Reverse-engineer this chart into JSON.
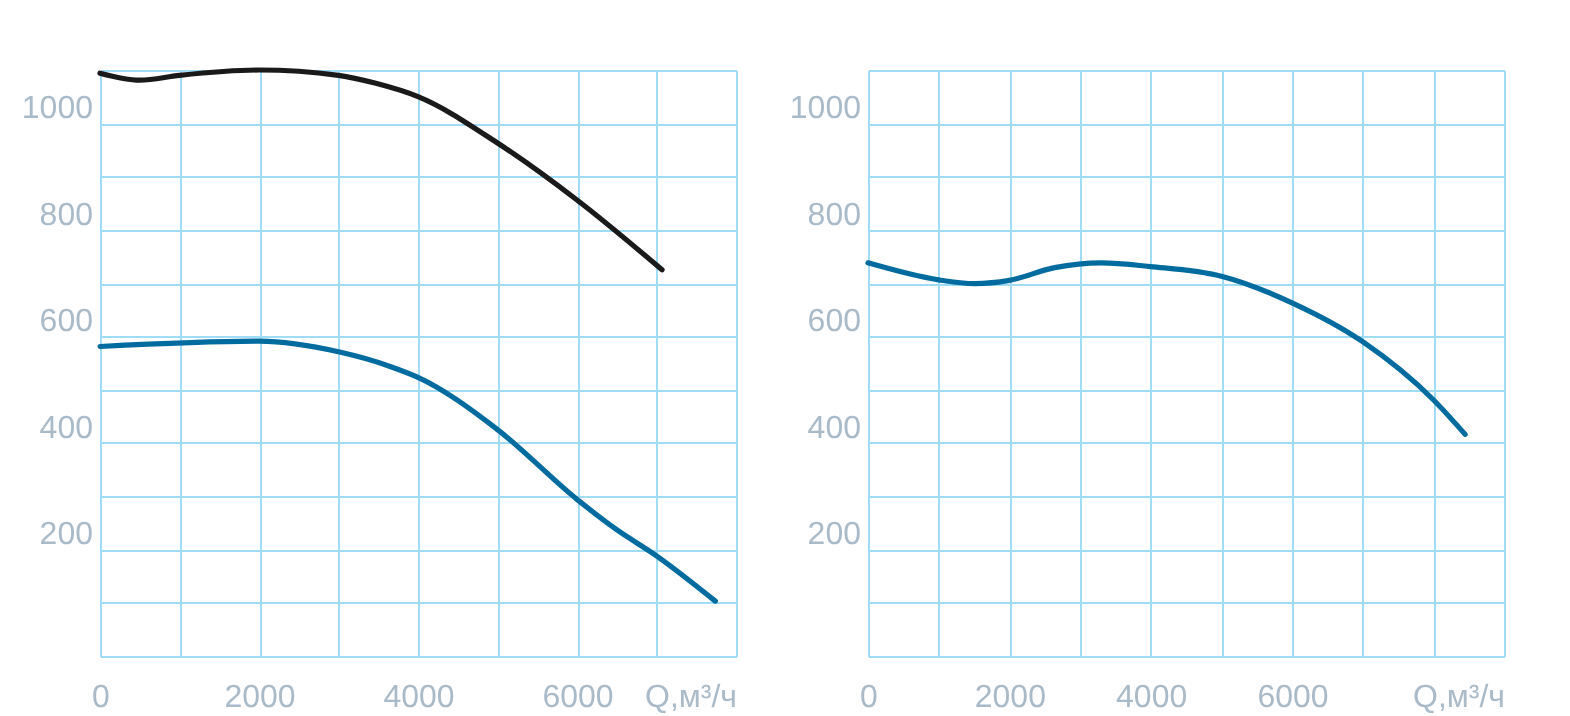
{
  "chart_data": [
    {
      "type": "line",
      "xlim": [
        0,
        8000
      ],
      "ylim": [
        0,
        1100
      ],
      "xlabel": "Q,м³/ч",
      "xticks": [
        0,
        {
          "value": 1000,
          "label": null
        },
        2000,
        {
          "value": 3000,
          "label": null
        },
        4000,
        {
          "value": 5000,
          "label": null
        },
        6000,
        {
          "value": 7000,
          "label": null
        },
        {
          "value": 8000,
          "label": null
        }
      ],
      "yticks": [
        {
          "value": 0,
          "label": null
        },
        {
          "value": 100,
          "label": null
        },
        200,
        {
          "value": 300,
          "label": null
        },
        400,
        {
          "value": 500,
          "label": null
        },
        600,
        {
          "value": 700,
          "label": null
        },
        800,
        {
          "value": 900,
          "label": null
        },
        1000,
        {
          "value": 1100,
          "label": null
        }
      ],
      "grid": true,
      "line_style": "solid",
      "series": [
        {
          "color": "#1a1a1a",
          "x": [
            0,
            500,
            1000,
            2000,
            3000,
            3470,
            4000,
            5000,
            6000,
            7070
          ],
          "values": [
            1094,
            1081,
            1090,
            1100,
            1090,
            1075,
            1050,
            963,
            856,
            725
          ]
        },
        {
          "color": "#006b9f",
          "x": [
            0,
            2000,
            3000,
            3640,
            4000,
            5000,
            6000,
            6490,
            7000,
            7740
          ],
          "values": [
            581,
            591,
            571,
            544,
            523,
            425,
            294,
            238,
            188,
            103
          ]
        }
      ]
    },
    {
      "type": "line",
      "xlim": [
        0,
        9000
      ],
      "ylim": [
        0,
        1100
      ],
      "xlabel": "Q,м³/ч",
      "xticks": [
        0,
        {
          "value": 1000,
          "label": null
        },
        2000,
        {
          "value": 3000,
          "label": null
        },
        4000,
        {
          "value": 5000,
          "label": null
        },
        6000,
        {
          "value": 7000,
          "label": null
        },
        {
          "value": 8000,
          "label": null
        },
        {
          "value": 9000,
          "label": null
        }
      ],
      "yticks": [
        {
          "value": 0,
          "label": null
        },
        {
          "value": 100,
          "label": null
        },
        200,
        {
          "value": 300,
          "label": null
        },
        400,
        {
          "value": 500,
          "label": null
        },
        600,
        {
          "value": 700,
          "label": null
        },
        800,
        {
          "value": 900,
          "label": null
        },
        1000,
        {
          "value": 1100,
          "label": null
        }
      ],
      "grid": true,
      "line_style": "solid",
      "series": [
        {
          "color": "#006b9f",
          "x": [
            0,
            1000,
            1510,
            2000,
            2640,
            3300,
            4000,
            5000,
            6000,
            7000,
            8000,
            8450
          ],
          "values": [
            738,
            706,
            699,
            705,
            729,
            738,
            731,
            713,
            663,
            590,
            481,
            416
          ]
        }
      ]
    }
  ]
}
